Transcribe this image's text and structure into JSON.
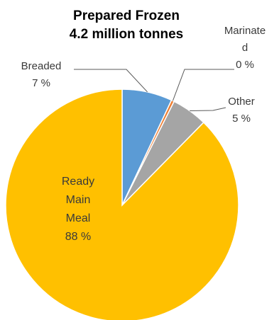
{
  "chart_data": {
    "type": "pie",
    "title": "Prepared Frozen",
    "subtitle": "4.2 million tonnes",
    "slices": [
      {
        "name": "Breaded",
        "value": 7,
        "label_lines": [
          "Breaded",
          "7 %"
        ],
        "color": "#5b9bd5"
      },
      {
        "name": "Marinated",
        "value": 0.4,
        "label_lines": [
          "Marinate",
          "d",
          "0 %"
        ],
        "color": "#ed7d31"
      },
      {
        "name": "Other",
        "value": 5,
        "label_lines": [
          "Other",
          "5 %"
        ],
        "color": "#a5a5a5"
      },
      {
        "name": "Ready Main Meal",
        "value": 88,
        "label_lines": [
          "Ready",
          "Main",
          "Meal",
          "88 %"
        ],
        "color": "#ffc000"
      }
    ]
  }
}
